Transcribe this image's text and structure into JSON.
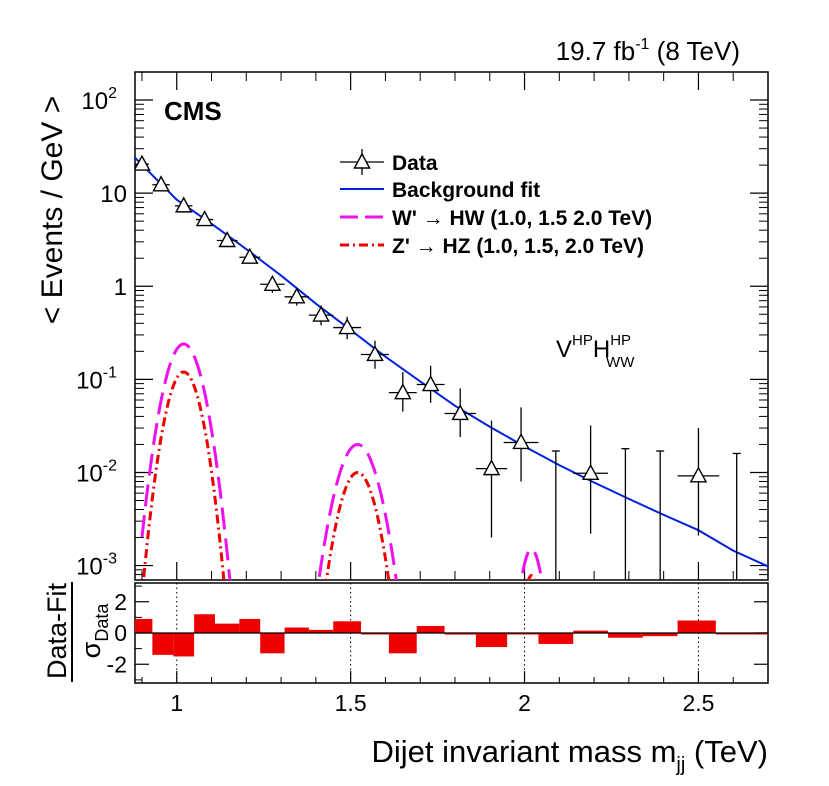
{
  "chart_data": {
    "type": "scatter",
    "lumi_label": "19.7 fb",
    "lumi_exp": "-1",
    "lumi_energy": " (8 TeV)",
    "experiment": "CMS",
    "category_label": {
      "main": "V",
      "sup1": "HP",
      "mid": "H",
      "sup2": "HP",
      "sub2": "WW"
    },
    "ylabel": "< Events / GeV >",
    "xlabel": "Dijet invariant mass m",
    "xlabel_sub": "jj",
    "xlabel_unit": " (TeV)",
    "ratio_ylabel_num": "Data-Fit",
    "ratio_ylabel_den": "σ",
    "ratio_ylabel_den_sub": "Data",
    "xlim": [
      0.88,
      2.7
    ],
    "ylim": [
      0.0007,
      200
    ],
    "ratio_ylim": [
      -3.2,
      3.2
    ],
    "x_ticks": [
      "1",
      "1.5",
      "2",
      "2.5"
    ],
    "x_tick_values": [
      1.0,
      1.5,
      2.0,
      2.5
    ],
    "y_ticks": [
      {
        "value": 0.001,
        "base": "10",
        "exp": "-3"
      },
      {
        "value": 0.01,
        "base": "10",
        "exp": "-2"
      },
      {
        "value": 0.1,
        "base": "10",
        "exp": "-1"
      },
      {
        "value": 1,
        "base": "1",
        "exp": ""
      },
      {
        "value": 10,
        "base": "10",
        "exp": ""
      },
      {
        "value": 100,
        "base": "10",
        "exp": "2"
      }
    ],
    "ratio_ticks": [
      "2",
      "0",
      "-2"
    ],
    "ratio_tick_values": [
      2,
      0,
      -2
    ],
    "legend": [
      {
        "label": "Data",
        "style": "data"
      },
      {
        "label": "Background fit",
        "style": "fit"
      },
      {
        "label": "W' → HW (1.0, 1.5 2.0 TeV)",
        "style": "wprime"
      },
      {
        "label": "Z' → HZ (1.0, 1.5, 2.0 TeV)",
        "style": "zprime"
      }
    ],
    "colors": {
      "fit": "#0022dd",
      "wprime": "#ee11ee",
      "zprime": "#ee0000",
      "ratio": "#ee0000"
    },
    "data_points": [
      {
        "x": 0.9,
        "xerr": 0.02,
        "y": 20.5,
        "ylo": 19.0,
        "yhi": 22.0
      },
      {
        "x": 0.955,
        "xerr": 0.025,
        "y": 12.3,
        "ylo": 11.2,
        "yhi": 13.5
      },
      {
        "x": 1.02,
        "xerr": 0.025,
        "y": 7.3,
        "ylo": 6.5,
        "yhi": 8.1
      },
      {
        "x": 1.08,
        "xerr": 0.025,
        "y": 5.2,
        "ylo": 4.6,
        "yhi": 5.9
      },
      {
        "x": 1.145,
        "xerr": 0.03,
        "y": 3.1,
        "ylo": 2.7,
        "yhi": 3.6
      },
      {
        "x": 1.21,
        "xerr": 0.03,
        "y": 2.05,
        "ylo": 1.75,
        "yhi": 2.4
      },
      {
        "x": 1.275,
        "xerr": 0.035,
        "y": 1.05,
        "ylo": 0.85,
        "yhi": 1.28
      },
      {
        "x": 1.345,
        "xerr": 0.035,
        "y": 0.77,
        "ylo": 0.62,
        "yhi": 0.95
      },
      {
        "x": 1.415,
        "xerr": 0.035,
        "y": 0.49,
        "ylo": 0.38,
        "yhi": 0.62
      },
      {
        "x": 1.49,
        "xerr": 0.04,
        "y": 0.36,
        "ylo": 0.27,
        "yhi": 0.47
      },
      {
        "x": 1.57,
        "xerr": 0.04,
        "y": 0.185,
        "ylo": 0.13,
        "yhi": 0.26
      },
      {
        "x": 1.65,
        "xerr": 0.04,
        "y": 0.072,
        "ylo": 0.045,
        "yhi": 0.12
      },
      {
        "x": 1.73,
        "xerr": 0.04,
        "y": 0.088,
        "ylo": 0.056,
        "yhi": 0.14
      },
      {
        "x": 1.815,
        "xerr": 0.045,
        "y": 0.043,
        "ylo": 0.024,
        "yhi": 0.08
      },
      {
        "x": 1.905,
        "xerr": 0.045,
        "y": 0.011,
        "ylo": 0.002,
        "yhi": 0.036
      },
      {
        "x": 1.99,
        "xerr": 0.05,
        "y": 0.021,
        "ylo": 0.008,
        "yhi": 0.05
      },
      {
        "x": 2.19,
        "xerr": 0.05,
        "y": 0.0098,
        "ylo": 0.0022,
        "yhi": 0.032
      },
      {
        "x": 2.5,
        "xerr": 0.06,
        "y": 0.0092,
        "ylo": 0.0021,
        "yhi": 0.03
      }
    ],
    "upper_limits": [
      {
        "x": 2.09,
        "yhi": 0.017
      },
      {
        "x": 2.29,
        "yhi": 0.018
      },
      {
        "x": 2.39,
        "yhi": 0.017
      },
      {
        "x": 2.61,
        "yhi": 0.016
      }
    ],
    "background_fit": [
      [
        0.88,
        24.0
      ],
      [
        1.0,
        8.5
      ],
      [
        1.1,
        4.7
      ],
      [
        1.2,
        2.5
      ],
      [
        1.3,
        1.3
      ],
      [
        1.4,
        0.65
      ],
      [
        1.5,
        0.34
      ],
      [
        1.6,
        0.175
      ],
      [
        1.7,
        0.095
      ],
      [
        1.8,
        0.052
      ],
      [
        1.9,
        0.031
      ],
      [
        2.0,
        0.019
      ],
      [
        2.1,
        0.012
      ],
      [
        2.2,
        0.0078
      ],
      [
        2.3,
        0.0052
      ],
      [
        2.4,
        0.0035
      ],
      [
        2.5,
        0.0024
      ],
      [
        2.6,
        0.00145
      ],
      [
        2.7,
        0.00098
      ]
    ],
    "signals": {
      "wprime": [
        {
          "mass": 1.0,
          "peak": 0.24,
          "xmin": 0.9,
          "xmax": 1.18
        },
        {
          "mass": 1.5,
          "peak": 0.02,
          "xmin": 1.41,
          "xmax": 1.72
        },
        {
          "mass": 2.0,
          "peak": 0.0015,
          "xmin": 1.95,
          "xmax": 2.12
        }
      ],
      "zprime": [
        {
          "mass": 1.0,
          "peak": 0.12,
          "xmin": 0.9,
          "xmax": 1.16
        },
        {
          "mass": 1.5,
          "peak": 0.01,
          "xmin": 1.42,
          "xmax": 1.7
        },
        {
          "mass": 2.0,
          "peak": 0.00078,
          "xmin": 1.96,
          "xmax": 2.1
        }
      ]
    },
    "ratio_bins": [
      [
        0.88,
        0.93,
        0.9
      ],
      [
        0.93,
        0.99,
        -1.4
      ],
      [
        0.99,
        1.05,
        -1.5
      ],
      [
        1.05,
        1.11,
        1.2
      ],
      [
        1.11,
        1.18,
        0.6
      ],
      [
        1.18,
        1.24,
        0.9
      ],
      [
        1.24,
        1.31,
        -1.3
      ],
      [
        1.31,
        1.38,
        0.35
      ],
      [
        1.38,
        1.45,
        0.2
      ],
      [
        1.45,
        1.53,
        0.75
      ],
      [
        1.53,
        1.61,
        -0.05
      ],
      [
        1.61,
        1.69,
        -1.3
      ],
      [
        1.69,
        1.77,
        0.45
      ],
      [
        1.77,
        1.86,
        -0.1
      ],
      [
        1.86,
        1.95,
        -0.9
      ],
      [
        1.95,
        2.04,
        -0.05
      ],
      [
        2.04,
        2.14,
        -0.7
      ],
      [
        2.14,
        2.24,
        0.15
      ],
      [
        2.24,
        2.34,
        -0.3
      ],
      [
        2.34,
        2.44,
        -0.2
      ],
      [
        2.44,
        2.55,
        0.8
      ],
      [
        2.55,
        2.7,
        -0.05
      ]
    ]
  }
}
